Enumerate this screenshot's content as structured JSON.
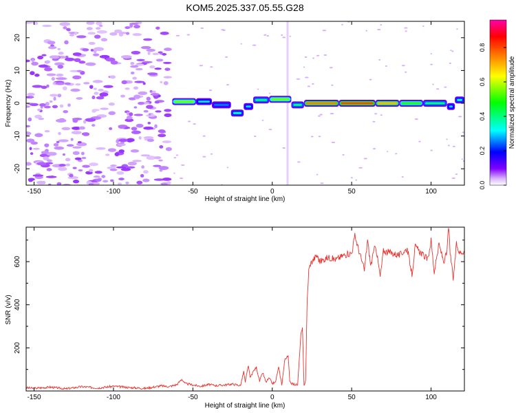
{
  "chart_data": [
    {
      "type": "heatmap",
      "title": "KOM5.2025.337.05.55.G28",
      "xlabel": "Height of straight line (km)",
      "ylabel": "Frequency (Hz)",
      "xlim": [
        -155,
        121
      ],
      "ylim": [
        -25,
        25
      ],
      "xticks": [
        -150,
        -100,
        -50,
        0,
        50,
        100
      ],
      "yticks": [
        -20,
        -10,
        0,
        10,
        20
      ],
      "colorbar": {
        "label": "Normalized spectral amplitude",
        "range": [
          0,
          0.96
        ],
        "ticks": [
          "0.0",
          "0.2",
          "0.4",
          "0.6",
          "0.8"
        ],
        "colors": [
          "#ffffff",
          "#d9b3ff",
          "#8000ff",
          "#0000ff",
          "#00ffff",
          "#00ff00",
          "#ffff00",
          "#ff8000",
          "#ff0000",
          "#ff00aa"
        ]
      },
      "ridge": [
        {
          "x": [
            -63,
            -48
          ],
          "freq": 0.5,
          "amp": 0.55
        },
        {
          "x": [
            -48,
            -38
          ],
          "freq": 0.5,
          "amp": 0.3
        },
        {
          "x": [
            -38,
            -26
          ],
          "freq": -0.5,
          "amp": 0.25
        },
        {
          "x": [
            -26,
            -18
          ],
          "freq": -3,
          "amp": 0.35
        },
        {
          "x": [
            -18,
            -12
          ],
          "freq": -1,
          "amp": 0.3
        },
        {
          "x": [
            -12,
            -2
          ],
          "freq": 1,
          "amp": 0.4
        },
        {
          "x": [
            -2,
            12
          ],
          "freq": 1.2,
          "amp": 0.55
        },
        {
          "x": [
            12,
            20
          ],
          "freq": -0.5,
          "amp": 0.4
        },
        {
          "x": [
            20,
            42
          ],
          "freq": 0,
          "amp": 0.75
        },
        {
          "x": [
            42,
            65
          ],
          "freq": 0,
          "amp": 0.8
        },
        {
          "x": [
            65,
            80
          ],
          "freq": 0,
          "amp": 0.7
        },
        {
          "x": [
            80,
            95
          ],
          "freq": 0,
          "amp": 0.5
        },
        {
          "x": [
            95,
            110
          ],
          "freq": 0,
          "amp": 0.4
        },
        {
          "x": [
            110,
            115
          ],
          "freq": -1,
          "amp": 0.3
        },
        {
          "x": [
            115,
            121
          ],
          "freq": 1,
          "amp": 0.35
        }
      ]
    },
    {
      "type": "line",
      "xlabel": "Height of straight line (km)",
      "ylabel": "SNR (v/v)",
      "xlim": [
        -155,
        121
      ],
      "ylim": [
        0,
        760
      ],
      "xticks": [
        -150,
        -100,
        -50,
        0,
        50,
        100
      ],
      "yticks": [
        200,
        400,
        600
      ],
      "series": [
        {
          "color": "#e8322d",
          "x": [
            -155,
            -150,
            -140,
            -130,
            -120,
            -110,
            -100,
            -90,
            -80,
            -70,
            -65,
            -60,
            -57,
            -55,
            -50,
            -45,
            -40,
            -35,
            -30,
            -25,
            -20,
            -18,
            -17,
            -15,
            -14,
            -12,
            -10,
            -8,
            -6,
            -4,
            -2,
            0,
            2,
            4,
            6,
            8,
            10,
            11,
            12,
            14,
            16,
            18,
            19,
            20,
            21,
            22,
            23,
            24,
            26,
            28,
            30,
            35,
            40,
            45,
            50,
            52,
            55,
            58,
            60,
            62,
            65,
            68,
            70,
            75,
            80,
            85,
            88,
            90,
            95,
            98,
            100,
            102,
            105,
            108,
            110,
            111,
            112,
            114,
            116,
            118,
            121
          ],
          "y": [
            15,
            12,
            18,
            10,
            20,
            14,
            22,
            16,
            12,
            24,
            20,
            30,
            55,
            35,
            28,
            22,
            30,
            25,
            28,
            32,
            25,
            90,
            40,
            120,
            60,
            90,
            110,
            45,
            85,
            40,
            60,
            35,
            40,
            110,
            30,
            150,
            160,
            50,
            35,
            30,
            28,
            260,
            290,
            25,
            50,
            420,
            560,
            590,
            610,
            630,
            600,
            620,
            610,
            630,
            640,
            720,
            640,
            560,
            700,
            580,
            680,
            530,
            650,
            640,
            630,
            660,
            540,
            670,
            630,
            610,
            700,
            550,
            680,
            600,
            640,
            770,
            640,
            520,
            680,
            640,
            650
          ]
        }
      ]
    }
  ]
}
